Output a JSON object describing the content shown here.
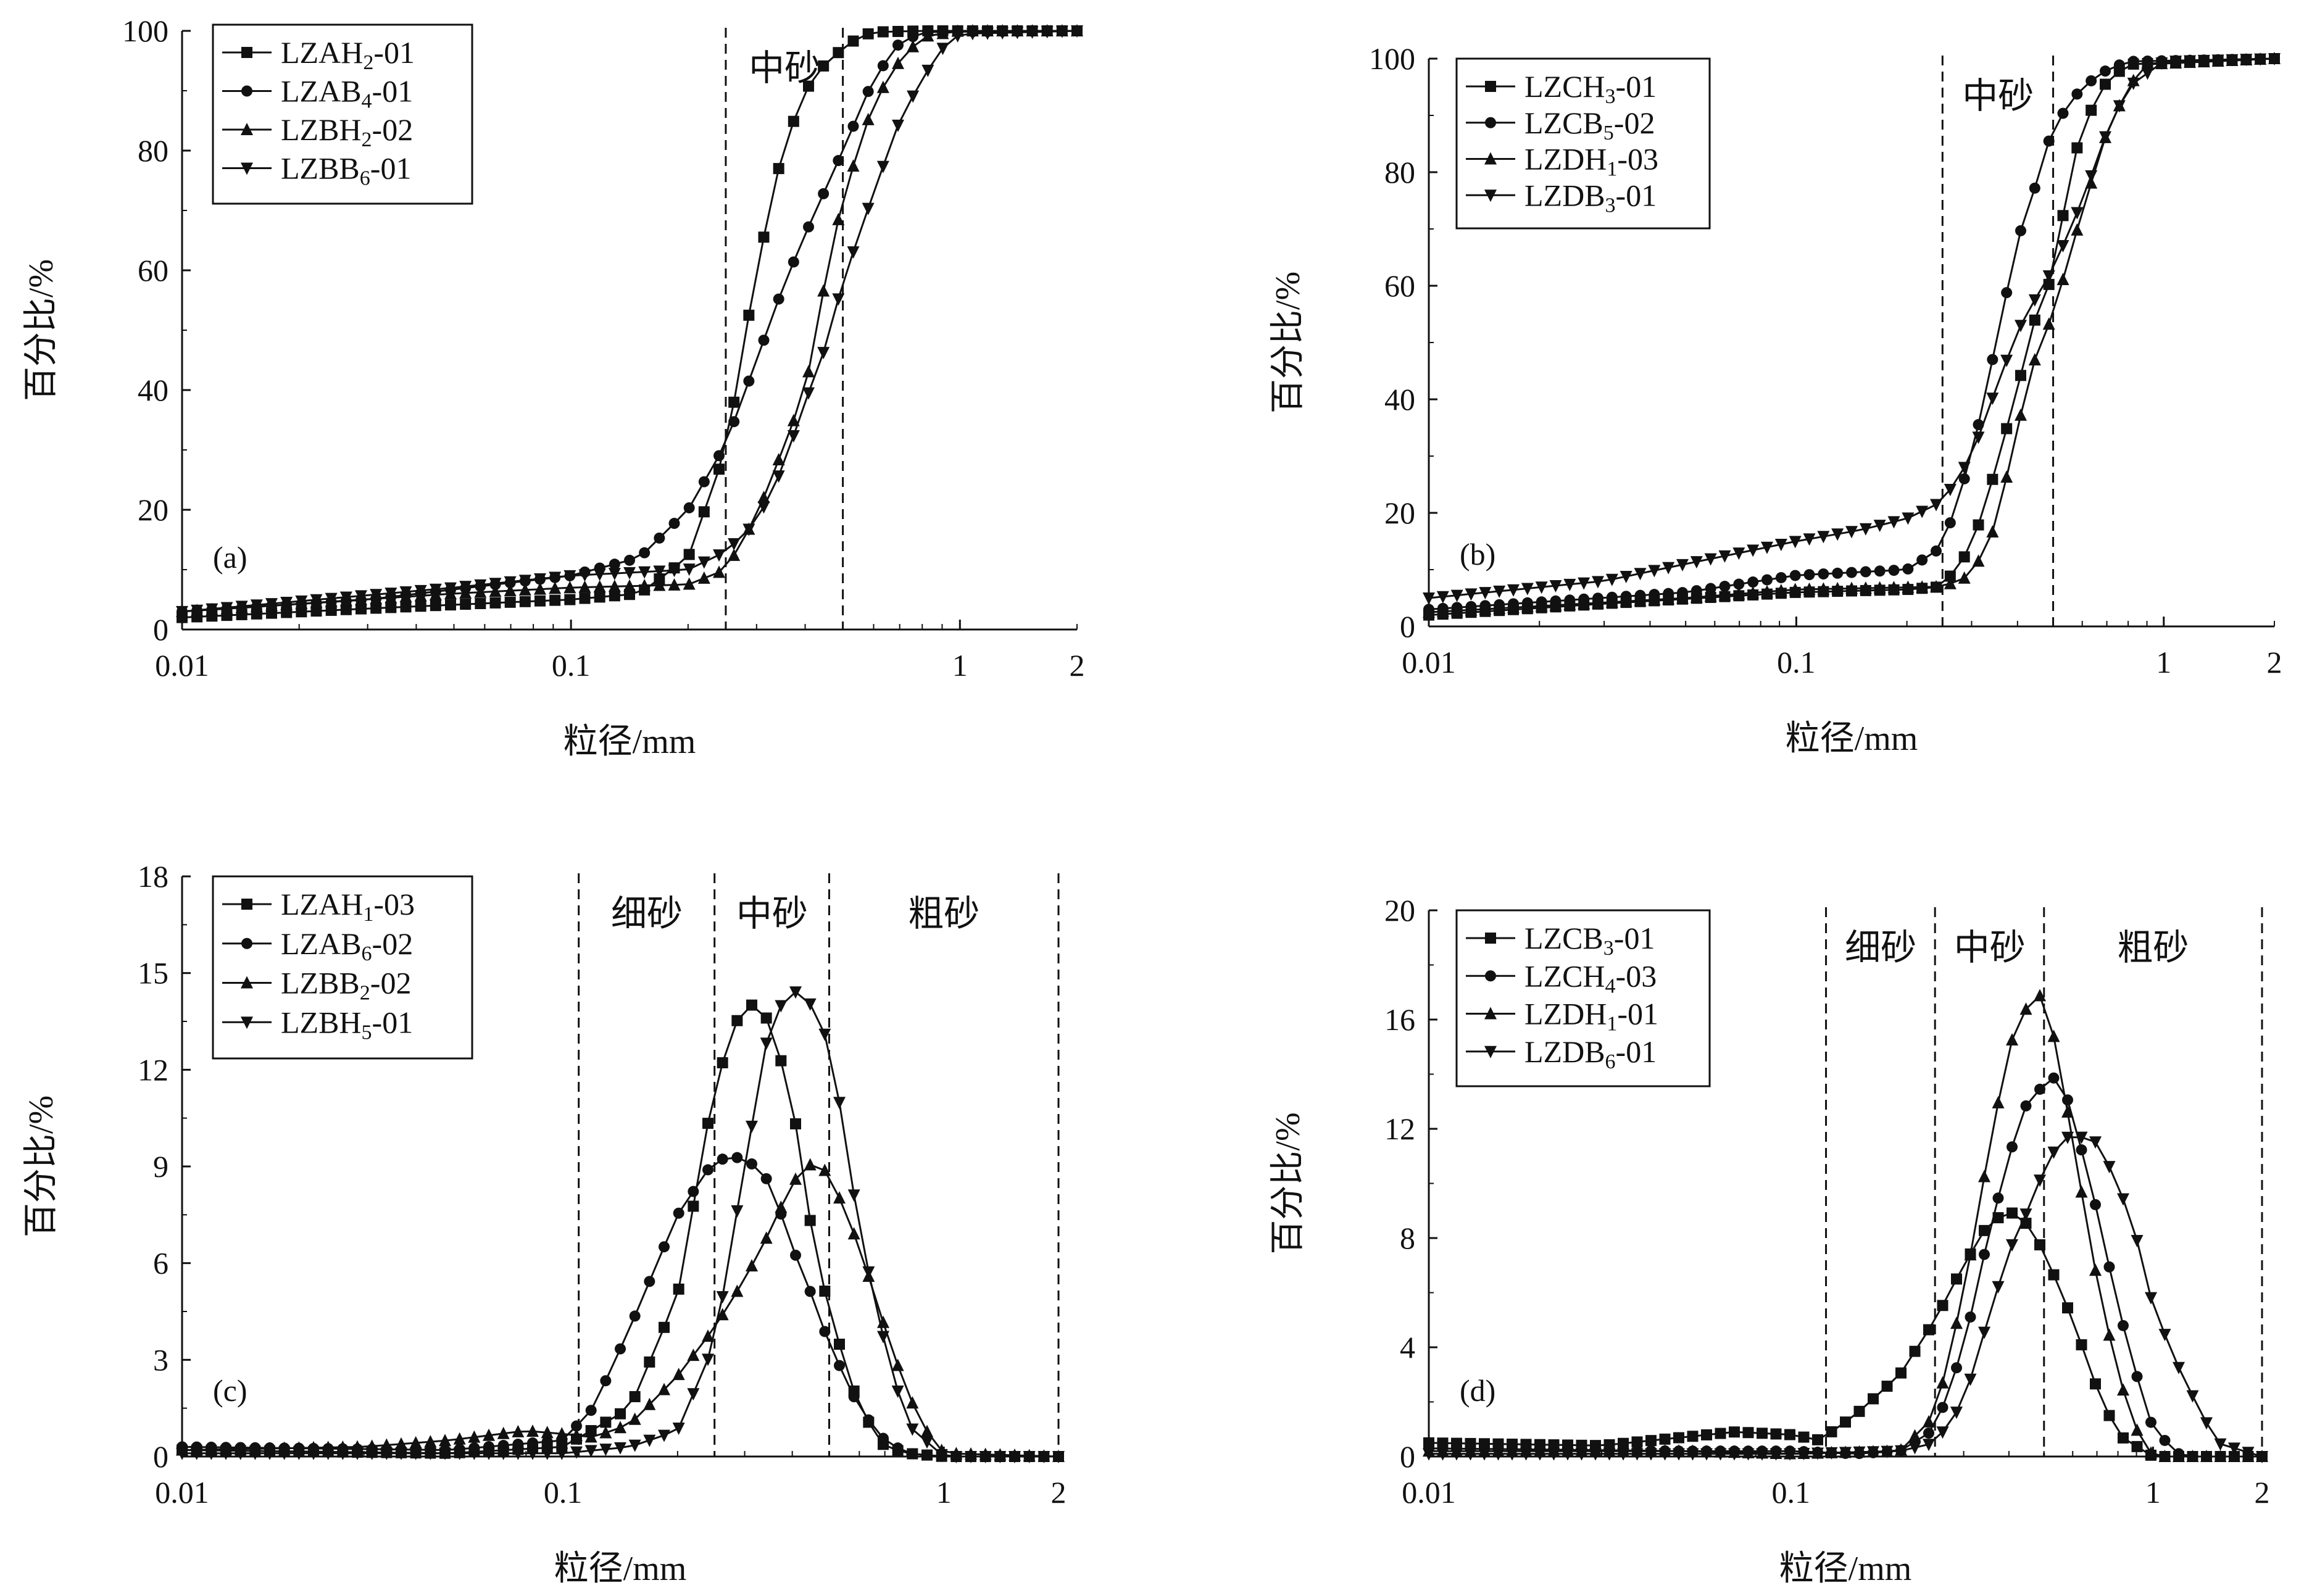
{
  "chart_data": [
    {
      "type": "line",
      "panel_label": "(a)",
      "xlabel": "粒径/mm",
      "ylabel": "百分比/%",
      "xscale": "log",
      "xlim": [
        0.01,
        2
      ],
      "ylim": [
        0,
        100
      ],
      "x_ticks": [
        0.01,
        0.1,
        1,
        2
      ],
      "x_tick_labels": [
        "0.01",
        "0.1",
        "1",
        "2"
      ],
      "y_ticks": [
        0,
        20,
        40,
        60,
        80,
        100
      ],
      "y_tick_labels": [
        "0",
        "20",
        "40",
        "60",
        "80",
        "100"
      ],
      "grid": false,
      "legend_position": "top-left",
      "zone_lines": [
        0.25,
        0.5
      ],
      "zone_labels": [
        {
          "text": "中砂",
          "x": 0.354
        }
      ],
      "series": [
        {
          "name": "LZAH",
          "sub": "2",
          "suffix": "-01",
          "marker": "square",
          "x": [
            0.01,
            0.03,
            0.1,
            0.15,
            0.2,
            0.25,
            0.3,
            0.35,
            0.4,
            0.45,
            0.5,
            0.55,
            0.6,
            0.8,
            2
          ],
          "y": [
            2,
            3.5,
            5,
            6,
            12,
            30,
            60,
            80,
            90,
            94.5,
            97,
            99,
            99.8,
            100,
            100
          ]
        },
        {
          "name": "LZAB",
          "sub": "4",
          "suffix": "-01",
          "marker": "circle",
          "x": [
            0.01,
            0.03,
            0.1,
            0.15,
            0.2,
            0.25,
            0.3,
            0.35,
            0.4,
            0.5,
            0.6,
            0.7,
            0.8,
            2
          ],
          "y": [
            3,
            5,
            9,
            12,
            20,
            31,
            45,
            57,
            66,
            80,
            92,
            98,
            99.8,
            100
          ]
        },
        {
          "name": "LZBH",
          "sub": "2",
          "suffix": "-02",
          "marker": "triangle-up",
          "x": [
            0.01,
            0.05,
            0.1,
            0.2,
            0.25,
            0.3,
            0.35,
            0.4,
            0.45,
            0.5,
            0.6,
            0.7,
            0.8,
            1,
            2
          ],
          "y": [
            3,
            6,
            7,
            7.5,
            10,
            19,
            30,
            40,
            58,
            72,
            88,
            95,
            99,
            100,
            100
          ]
        },
        {
          "name": "LZBB",
          "sub": "6",
          "suffix": "-01",
          "marker": "triangle-down",
          "x": [
            0.01,
            0.05,
            0.1,
            0.2,
            0.25,
            0.3,
            0.35,
            0.4,
            0.45,
            0.5,
            0.6,
            0.7,
            0.8,
            0.9,
            1,
            2
          ],
          "y": [
            3,
            7,
            9,
            10,
            13,
            18,
            27,
            38,
            47,
            58,
            73,
            85,
            92,
            97,
            99.5,
            100
          ]
        }
      ]
    },
    {
      "type": "line",
      "panel_label": "(b)",
      "xlabel": "粒径/mm",
      "ylabel": "百分比/%",
      "xscale": "log",
      "xlim": [
        0.01,
        2
      ],
      "ylim": [
        0,
        100
      ],
      "x_ticks": [
        0.01,
        0.1,
        1,
        2
      ],
      "x_tick_labels": [
        "0.01",
        "0.1",
        "1",
        "2"
      ],
      "y_ticks": [
        0,
        20,
        40,
        60,
        80,
        100
      ],
      "y_tick_labels": [
        "0",
        "20",
        "40",
        "60",
        "80",
        "100"
      ],
      "grid": false,
      "legend_position": "top-left",
      "zone_lines": [
        0.25,
        0.5
      ],
      "zone_labels": [
        {
          "text": "中砂",
          "x": 0.354
        }
      ],
      "series": [
        {
          "name": "LZCH",
          "sub": "3",
          "suffix": "-01",
          "marker": "square",
          "x": [
            0.01,
            0.03,
            0.1,
            0.2,
            0.25,
            0.3,
            0.35,
            0.4,
            0.45,
            0.5,
            0.55,
            0.6,
            0.7,
            0.8,
            2
          ],
          "y": [
            2,
            4,
            6,
            6.5,
            7,
            14,
            28,
            42,
            55,
            62,
            78,
            88,
            96,
            99,
            100
          ]
        },
        {
          "name": "LZCB",
          "sub": "5",
          "suffix": "-02",
          "marker": "circle",
          "x": [
            0.01,
            0.05,
            0.1,
            0.2,
            0.25,
            0.3,
            0.35,
            0.4,
            0.45,
            0.5,
            0.6,
            0.7,
            0.8,
            2
          ],
          "y": [
            3,
            6,
            9,
            10,
            14,
            30,
            50,
            68,
            78,
            88,
            95,
            98,
            99.5,
            100
          ]
        },
        {
          "name": "LZDH",
          "sub": "1",
          "suffix": "-03",
          "marker": "triangle-up",
          "x": [
            0.01,
            0.05,
            0.1,
            0.25,
            0.3,
            0.35,
            0.4,
            0.45,
            0.5,
            0.6,
            0.7,
            0.8,
            0.9,
            2
          ],
          "y": [
            2.5,
            5,
            6.5,
            7,
            9,
            18,
            35,
            48,
            55,
            73,
            87,
            95,
            99,
            100
          ]
        },
        {
          "name": "LZDB",
          "sub": "3",
          "suffix": "-01",
          "marker": "triangle-down",
          "x": [
            0.01,
            0.03,
            0.05,
            0.1,
            0.15,
            0.2,
            0.25,
            0.3,
            0.35,
            0.4,
            0.45,
            0.5,
            0.6,
            0.7,
            0.8,
            1,
            2
          ],
          "y": [
            5,
            8,
            11,
            15,
            17,
            19,
            22,
            30,
            42,
            52,
            58,
            63,
            75,
            87,
            95,
            99.5,
            100
          ]
        }
      ]
    },
    {
      "type": "line",
      "panel_label": "(c)",
      "xlabel": "粒径/mm",
      "ylabel": "百分比/%",
      "xscale": "log",
      "xlim": [
        0.01,
        2
      ],
      "ylim": [
        0,
        18
      ],
      "x_ticks": [
        0.01,
        0.1,
        1,
        2
      ],
      "x_tick_labels": [
        "0.01",
        "0.1",
        "1",
        "2"
      ],
      "y_ticks": [
        0,
        3,
        6,
        9,
        12,
        15,
        18
      ],
      "y_tick_labels": [
        "0",
        "3",
        "6",
        "9",
        "12",
        "15",
        "18"
      ],
      "grid": false,
      "legend_position": "top-left",
      "zone_lines": [
        0.11,
        0.25,
        0.5,
        2
      ],
      "zone_labels": [
        {
          "text": "细砂",
          "x": 0.166
        },
        {
          "text": "中砂",
          "x": 0.354
        },
        {
          "text": "粗砂",
          "x": 1.0
        }
      ],
      "series": [
        {
          "name": "LZAH",
          "sub": "1",
          "suffix": "-03",
          "marker": "square",
          "x": [
            0.01,
            0.05,
            0.1,
            0.15,
            0.2,
            0.25,
            0.3,
            0.35,
            0.4,
            0.45,
            0.5,
            0.6,
            0.7,
            0.8,
            1,
            2
          ],
          "y": [
            0.2,
            0.1,
            0.3,
            1.5,
            5,
            11.5,
            14.2,
            13.5,
            11,
            7,
            4.5,
            1.5,
            0.3,
            0.1,
            0,
            0
          ]
        },
        {
          "name": "LZAB",
          "sub": "6",
          "suffix": "-02",
          "marker": "circle",
          "x": [
            0.01,
            0.05,
            0.1,
            0.12,
            0.15,
            0.2,
            0.25,
            0.3,
            0.35,
            0.4,
            0.45,
            0.5,
            0.6,
            0.7,
            0.8,
            1,
            2
          ],
          "y": [
            0.3,
            0.2,
            0.5,
            1.5,
            4,
            7.5,
            9.2,
            9.3,
            8.5,
            6.5,
            5,
            3.5,
            1.5,
            0.5,
            0.1,
            0,
            0
          ]
        },
        {
          "name": "LZBB",
          "sub": "2",
          "suffix": "-02",
          "marker": "triangle-up",
          "x": [
            0.01,
            0.03,
            0.05,
            0.08,
            0.1,
            0.12,
            0.15,
            0.2,
            0.25,
            0.3,
            0.35,
            0.4,
            0.45,
            0.5,
            0.6,
            0.7,
            0.8,
            0.9,
            1,
            2
          ],
          "y": [
            0.2,
            0.3,
            0.5,
            0.8,
            0.7,
            0.6,
            1,
            2.5,
            4,
            5.5,
            7,
            8.5,
            9.1,
            8.8,
            6.5,
            4,
            2,
            0.8,
            0.1,
            0
          ]
        },
        {
          "name": "LZBH",
          "sub": "5",
          "suffix": "-01",
          "marker": "triangle-down",
          "x": [
            0.01,
            0.05,
            0.1,
            0.15,
            0.2,
            0.25,
            0.3,
            0.35,
            0.4,
            0.45,
            0.5,
            0.55,
            0.6,
            0.7,
            0.8,
            1,
            2
          ],
          "y": [
            0.1,
            0.1,
            0.1,
            0.3,
            0.8,
            3.5,
            9,
            13.5,
            14.5,
            14,
            12.8,
            10,
            7,
            3.5,
            1,
            0,
            0
          ]
        }
      ]
    },
    {
      "type": "line",
      "panel_label": "(d)",
      "xlabel": "粒径/mm",
      "ylabel": "百分比/%",
      "xscale": "log",
      "xlim": [
        0.01,
        2
      ],
      "ylim": [
        0,
        20
      ],
      "x_ticks": [
        0.01,
        0.1,
        1,
        2
      ],
      "x_tick_labels": [
        "0.01",
        "0.1",
        "1",
        "2"
      ],
      "y_ticks": [
        0,
        4,
        8,
        12,
        16,
        20
      ],
      "y_tick_labels": [
        "0",
        "4",
        "8",
        "12",
        "16",
        "20"
      ],
      "grid": false,
      "legend_position": "top-left",
      "zone_lines": [
        0.125,
        0.25,
        0.5,
        2
      ],
      "zone_labels": [
        {
          "text": "细砂",
          "x": 0.177
        },
        {
          "text": "中砂",
          "x": 0.354
        },
        {
          "text": "粗砂",
          "x": 1.0
        }
      ],
      "series": [
        {
          "name": "LZCB",
          "sub": "3",
          "suffix": "-01",
          "marker": "square",
          "x": [
            0.01,
            0.03,
            0.05,
            0.07,
            0.1,
            0.12,
            0.15,
            0.2,
            0.25,
            0.3,
            0.35,
            0.4,
            0.45,
            0.5,
            0.6,
            0.7,
            0.8,
            1,
            2
          ],
          "y": [
            0.5,
            0.4,
            0.7,
            0.9,
            0.8,
            0.6,
            1.5,
            3,
            5,
            7,
            8.5,
            9,
            8.5,
            7.5,
            5,
            2.5,
            0.8,
            0,
            0
          ]
        },
        {
          "name": "LZCH",
          "sub": "4",
          "suffix": "-03",
          "marker": "circle",
          "x": [
            0.01,
            0.05,
            0.1,
            0.15,
            0.2,
            0.25,
            0.3,
            0.35,
            0.4,
            0.45,
            0.5,
            0.55,
            0.6,
            0.7,
            0.8,
            0.9,
            1,
            1.2,
            2
          ],
          "y": [
            0.3,
            0.2,
            0.2,
            0.1,
            0.2,
            1,
            4,
            8,
            11,
            13,
            13.6,
            14,
            12.5,
            9,
            5.5,
            3,
            1,
            0,
            0
          ]
        },
        {
          "name": "LZDH",
          "sub": "1",
          "suffix": "-01",
          "marker": "triangle-up",
          "x": [
            0.01,
            0.05,
            0.1,
            0.2,
            0.25,
            0.3,
            0.35,
            0.4,
            0.45,
            0.5,
            0.55,
            0.6,
            0.7,
            0.8,
            0.9,
            1,
            2
          ],
          "y": [
            0.2,
            0.2,
            0.1,
            0.2,
            1.5,
            6,
            11,
            15,
            16.5,
            17,
            14.5,
            11.5,
            6.5,
            3,
            1,
            0,
            0
          ]
        },
        {
          "name": "LZDB",
          "sub": "6",
          "suffix": "-01",
          "marker": "triangle-down",
          "x": [
            0.01,
            0.05,
            0.1,
            0.2,
            0.25,
            0.3,
            0.35,
            0.4,
            0.45,
            0.5,
            0.55,
            0.6,
            0.7,
            0.8,
            0.9,
            1,
            1.2,
            1.5,
            2
          ],
          "y": [
            0.1,
            0.1,
            0.1,
            0.2,
            0.5,
            2,
            5,
            7.5,
            9,
            10.5,
            11.5,
            11.8,
            11.5,
            10,
            8,
            5.5,
            3,
            0.5,
            0
          ]
        }
      ]
    }
  ]
}
